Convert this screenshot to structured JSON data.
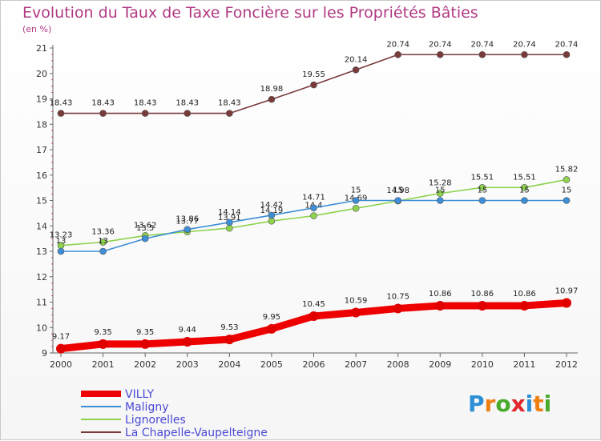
{
  "header": {
    "title": "Evolution du Taux de Taxe Foncière sur les Propriétés Bâties",
    "unit": "(en %)"
  },
  "brand": {
    "letters": [
      "P",
      "r",
      "o",
      "x",
      "i",
      "t",
      "i"
    ],
    "colors": [
      "#2c8fd6",
      "#f07f12",
      "#4aaa2a",
      "#e0282d",
      "#2c8fd6",
      "#f07f12",
      "#4aaa2a"
    ]
  },
  "chart_data": {
    "type": "line",
    "title": "Evolution du Taux de Taxe Foncière sur les Propriétés Bâties",
    "ylabel": "(en %)",
    "xlabel": "",
    "ylim": [
      9,
      21
    ],
    "yticks": [
      9,
      10,
      11,
      12,
      13,
      14,
      15,
      16,
      17,
      18,
      19,
      20,
      21
    ],
    "grid": false,
    "legend_position": "bottom-left",
    "x": [
      "2000",
      "2001",
      "2002",
      "2003",
      "2004",
      "2005",
      "2006",
      "2007",
      "2008",
      "2009",
      "2010",
      "2011",
      "2012"
    ],
    "series": [
      {
        "name": "VILLY",
        "color": "#ee0000",
        "emphasis": "thick",
        "values": [
          9.17,
          9.35,
          9.35,
          9.44,
          9.53,
          9.95,
          10.45,
          10.59,
          10.75,
          10.86,
          10.86,
          10.86,
          10.97
        ],
        "labels": [
          "9.17",
          "9.35",
          "9.35",
          "9.44",
          "9.53",
          "9.95",
          "10.45",
          "10.59",
          "10.75",
          "10.86",
          "10.86",
          "10.86",
          "10.97"
        ]
      },
      {
        "name": "Maligny",
        "color": "#3d8ed6",
        "emphasis": "thin",
        "values": [
          13,
          13,
          13.5,
          13.86,
          14.14,
          14.42,
          14.71,
          15,
          15,
          15,
          15,
          15,
          15
        ],
        "labels": [
          "13",
          "13",
          "13.5",
          "13.86",
          "14.14",
          "14.42",
          "14.71",
          "15",
          "15",
          "15",
          "15",
          "15",
          "15"
        ]
      },
      {
        "name": "Lignorelles",
        "color": "#8ed24e",
        "emphasis": "thin",
        "values": [
          13.23,
          13.36,
          13.62,
          13.77,
          13.91,
          14.19,
          14.4,
          14.69,
          14.98,
          15.28,
          15.51,
          15.51,
          15.82
        ],
        "labels": [
          "13.23",
          "13.36",
          "13.62",
          "13.77",
          "13.91",
          "14.19",
          "14.4",
          "14.69",
          "14.98",
          "15.28",
          "15.51",
          "15.51",
          "15.82"
        ]
      },
      {
        "name": "La Chapelle-Vaupelteigne",
        "color": "#7a3a3a",
        "emphasis": "thin",
        "values": [
          18.43,
          18.43,
          18.43,
          18.43,
          18.43,
          18.98,
          19.55,
          20.14,
          20.74,
          20.74,
          20.74,
          20.74,
          20.74
        ],
        "labels": [
          "18.43",
          "18.43",
          "18.43",
          "18.43",
          "18.43",
          "18.98",
          "19.55",
          "20.14",
          "20.74",
          "20.74",
          "20.74",
          "20.74",
          "20.74"
        ]
      }
    ]
  }
}
